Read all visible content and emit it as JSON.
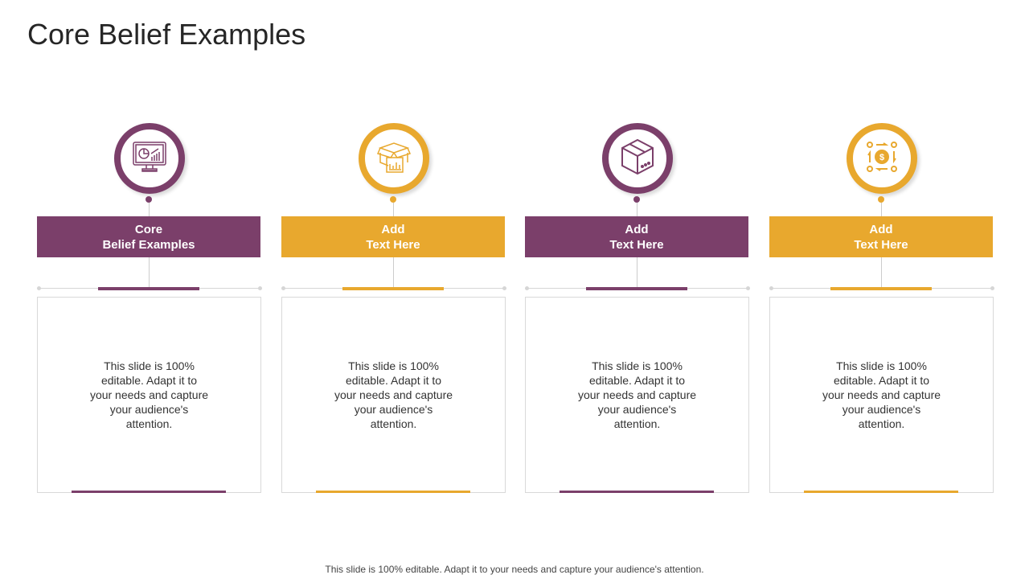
{
  "title": "Core Belief Examples",
  "colors": {
    "purple": "#7b3f6a",
    "gold": "#e8a82e"
  },
  "columns": [
    {
      "heading_line1": "Core",
      "heading_line2": "Belief Examples",
      "body": "This slide is 100% editable. Adapt it to your needs and capture your audience's attention.",
      "icon": "monitor-chart-icon",
      "color": "purple"
    },
    {
      "heading_line1": "Add",
      "heading_line2": "Text Here",
      "body": "This slide is 100% editable. Adapt it to your needs and capture your audience's attention.",
      "icon": "box-chart-icon",
      "color": "gold"
    },
    {
      "heading_line1": "Add",
      "heading_line2": "Text Here",
      "body": "This slide is 100% editable. Adapt it to your needs and capture your audience's attention.",
      "icon": "package-box-icon",
      "color": "purple"
    },
    {
      "heading_line1": "Add",
      "heading_line2": "Text Here",
      "body": "This slide is 100% editable. Adapt it to your needs and capture your audience's attention.",
      "icon": "money-cycle-icon",
      "color": "gold"
    }
  ],
  "footer": "This slide is 100% editable. Adapt it to your needs and capture your audience's attention."
}
